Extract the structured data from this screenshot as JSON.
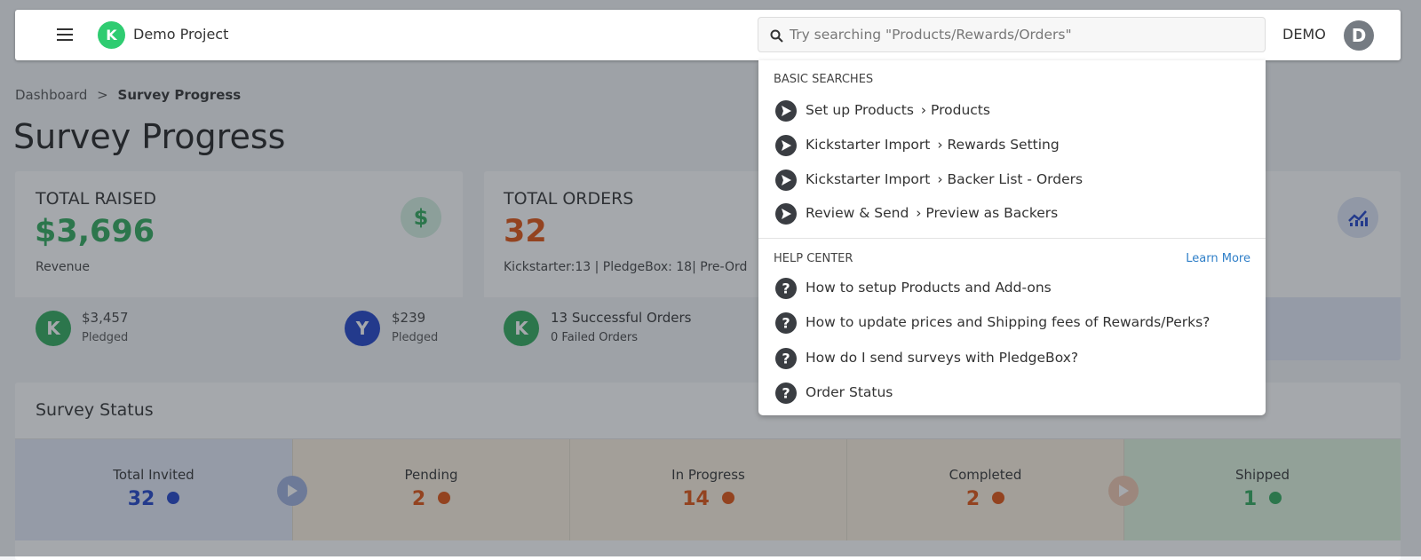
{
  "header": {
    "project": "Demo Project",
    "search_placeholder": "Try searching \"Products/Rewards/Orders\"",
    "user": "DEMO",
    "avatar": "D"
  },
  "breadcrumb": {
    "items": [
      "Dashboard",
      "Survey Progress"
    ],
    "separator": ">"
  },
  "title": "Survey Progress",
  "cards": [
    {
      "title": "TOTAL RAISED",
      "value": "$3,696",
      "caption": "Revenue",
      "sources": [
        {
          "amount": "$3,457",
          "label": "Pledged"
        },
        {
          "amount": "$239",
          "label": "Pledged"
        }
      ]
    },
    {
      "title": "TOTAL ORDERS",
      "value": 32,
      "caption": "Kickstarter:13 | PledgeBox: 18| Pre-Ord",
      "stats": [
        {
          "count": 13,
          "label": "Successful Orders"
        },
        {
          "count": 0,
          "label": "Failed Orders"
        }
      ]
    }
  ],
  "survey_status": {
    "title": "Survey Status",
    "stages": [
      {
        "label": "Total Invited",
        "value": 32
      },
      {
        "label": "Pending",
        "value": 2
      },
      {
        "label": "In Progress",
        "value": 14
      },
      {
        "label": "Completed",
        "value": 2
      },
      {
        "label": "Shipped",
        "value": 1
      }
    ]
  },
  "search_dropdown": {
    "basic": {
      "heading": "BASIC SEARCHES",
      "items": [
        {
          "label": "Set up Products",
          "target": "› Products"
        },
        {
          "label": "Kickstarter Import",
          "target": "› Rewards Setting"
        },
        {
          "label": "Kickstarter Import",
          "target": "› Backer List - Orders"
        },
        {
          "label": "Review & Send",
          "target": "› Preview as Backers"
        }
      ]
    },
    "help": {
      "heading": "HELP CENTER",
      "link": "Learn More",
      "items": [
        "How to setup Products and Add-ons",
        "How to update prices and Shipping fees of Rewards/Perks?",
        "How do I send surveys with PledgeBox?",
        "Order Status"
      ]
    }
  }
}
